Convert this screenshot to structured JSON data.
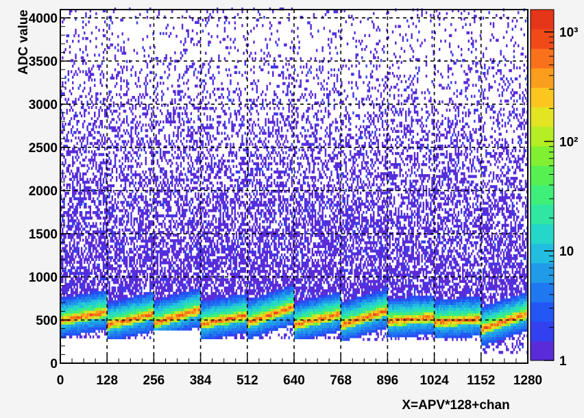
{
  "chart_data": {
    "type": "heatmap",
    "title": "",
    "xlabel": "X=APV*128+chan",
    "ylabel": "ADC value",
    "xlim": [
      0,
      1280
    ],
    "ylim": [
      0,
      4096
    ],
    "x_ticks": [
      "0",
      "128",
      "256",
      "384",
      "512",
      "640",
      "768",
      "896",
      "1024",
      "1152",
      "1280"
    ],
    "y_ticks": [
      "0",
      "500",
      "1000",
      "1500",
      "2000",
      "2500",
      "3000",
      "3500",
      "4000"
    ],
    "z_scale": "log",
    "z_ticks": [
      {
        "label": "1",
        "value": 1
      },
      {
        "label": "10",
        "value": 10
      },
      {
        "label": "10²",
        "value": 100
      },
      {
        "label": "10³",
        "value": 1000
      }
    ],
    "grid": true,
    "apv_segments": [
      {
        "x_start": 0,
        "x_end": 128,
        "baseline_low": 480,
        "baseline_high": 580,
        "min_adc": 290
      },
      {
        "x_start": 128,
        "x_end": 256,
        "baseline_low": 430,
        "baseline_high": 560,
        "min_adc": 280
      },
      {
        "x_start": 256,
        "x_end": 384,
        "baseline_low": 450,
        "baseline_high": 610,
        "min_adc": 380
      },
      {
        "x_start": 384,
        "x_end": 512,
        "baseline_low": 440,
        "baseline_high": 540,
        "min_adc": 280
      },
      {
        "x_start": 512,
        "x_end": 640,
        "baseline_low": 460,
        "baseline_high": 640,
        "min_adc": 280
      },
      {
        "x_start": 640,
        "x_end": 768,
        "baseline_low": 430,
        "baseline_high": 560,
        "min_adc": 280
      },
      {
        "x_start": 768,
        "x_end": 896,
        "baseline_low": 430,
        "baseline_high": 600,
        "min_adc": 260
      },
      {
        "x_start": 896,
        "x_end": 1024,
        "baseline_low": 470,
        "baseline_high": 520,
        "min_adc": 270
      },
      {
        "x_start": 1024,
        "x_end": 1152,
        "baseline_low": 460,
        "baseline_high": 500,
        "min_adc": 260
      },
      {
        "x_start": 1152,
        "x_end": 1280,
        "baseline_low": 380,
        "baseline_high": 560,
        "min_adc": 110
      }
    ],
    "palette": [
      "#5a2bd8",
      "#3340f0",
      "#2257f5",
      "#1f78f0",
      "#1f9be8",
      "#22bde0",
      "#25d7c9",
      "#2fe6a3",
      "#3ef07a",
      "#56f052",
      "#82f032",
      "#b5ee25",
      "#e3e422",
      "#fbc71f",
      "#fb9d1d",
      "#f9721b",
      "#f04a19",
      "#e6361a"
    ],
    "colors": {
      "background": "#ffffff",
      "frame_bg": "#f4f4f4",
      "grid": "#000000"
    }
  }
}
